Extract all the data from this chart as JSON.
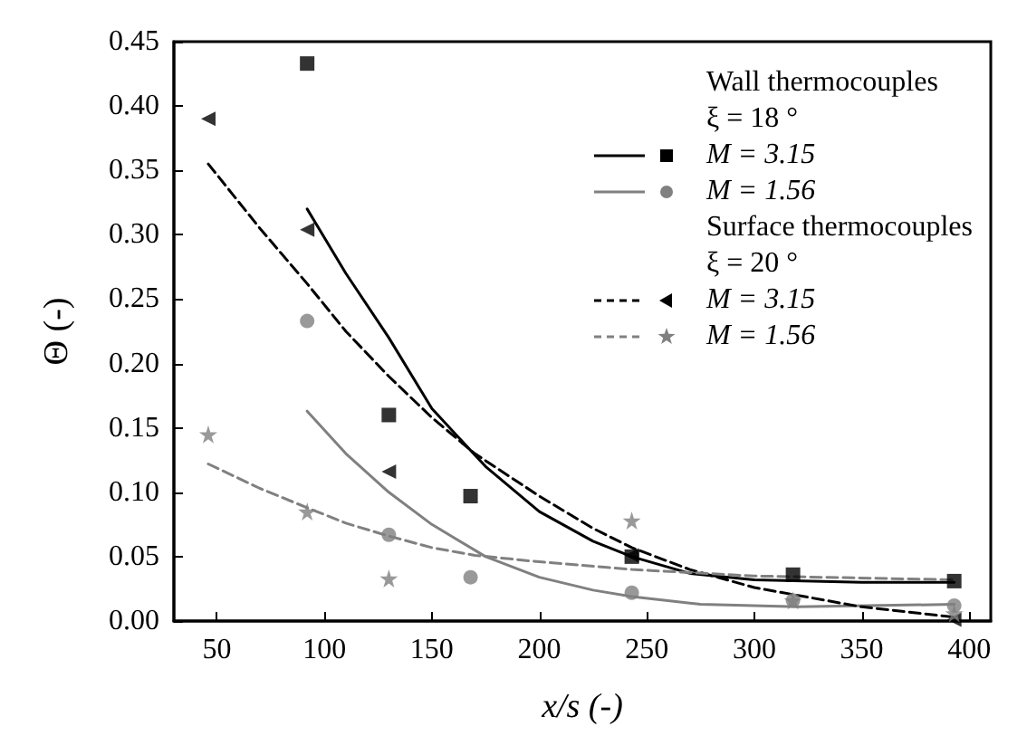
{
  "chart_data": {
    "type": "scatter",
    "xlabel": "x/s (-)",
    "ylabel": "Θ (-)",
    "xlim": [
      30,
      410
    ],
    "xticks": [
      50,
      100,
      150,
      200,
      250,
      300,
      350,
      400
    ],
    "ylim": [
      0,
      0.45
    ],
    "yticks": [
      {
        "value": 0,
        "label": "0.00"
      },
      0.05,
      {
        "value": 0.1,
        "label": "0.10"
      },
      0.15,
      {
        "value": 0.2,
        "label": "0.20"
      },
      0.25,
      {
        "value": 0.3,
        "label": "0.30"
      },
      0.35,
      {
        "value": 0.4,
        "label": "0.40"
      },
      0.45
    ],
    "grid": false,
    "legend": "top right",
    "annotations": [
      "Wall thermocouples",
      "ξ = 18 °",
      "Surface thermocouples",
      "ξ = 20 °"
    ],
    "series": [
      {
        "name": "M = 3.15",
        "color": "#000000",
        "marker": "square",
        "x": [
          92,
          130,
          168,
          243,
          318,
          393
        ],
        "values": [
          0.433,
          0.16,
          0.097,
          0.05,
          0.036,
          0.031
        ]
      },
      {
        "name": "M = 1.56",
        "color": "#808080",
        "marker": "circle",
        "x": [
          92,
          130,
          168,
          243,
          318,
          393
        ],
        "values": [
          0.233,
          0.067,
          0.034,
          0.022,
          0.016,
          0.012
        ]
      },
      {
        "name": "M = 3.15",
        "color": "#000000",
        "marker": "triangle",
        "x": [
          46,
          92,
          130,
          243,
          393
        ],
        "values": [
          0.39,
          0.304,
          0.116,
          0.051,
          0.001
        ]
      },
      {
        "name": "M = 1.56",
        "color": "#808080",
        "marker": "star",
        "x": [
          46,
          92,
          130,
          243,
          318,
          393
        ],
        "values": [
          0.145,
          0.085,
          0.033,
          0.078,
          0.016,
          0.006
        ]
      },
      {
        "type": "line",
        "color": "#000000",
        "line_style": "solid",
        "x": [
          92,
          110,
          130,
          150,
          175,
          200,
          225,
          243,
          270,
          300,
          350,
          393
        ],
        "values": [
          0.32,
          0.27,
          0.22,
          0.165,
          0.12,
          0.085,
          0.062,
          0.05,
          0.037,
          0.032,
          0.03,
          0.03
        ]
      },
      {
        "type": "line",
        "color": "#808080",
        "line_style": "solid",
        "x": [
          92,
          110,
          130,
          150,
          175,
          200,
          225,
          243,
          275,
          320,
          393
        ],
        "values": [
          0.163,
          0.13,
          0.1,
          0.075,
          0.05,
          0.034,
          0.024,
          0.019,
          0.013,
          0.011,
          0.013
        ]
      },
      {
        "type": "line",
        "color": "#000000",
        "line_style": "dashed",
        "x": [
          46,
          70,
          92,
          110,
          130,
          150,
          170,
          200,
          225,
          243,
          270,
          300,
          350,
          393
        ],
        "values": [
          0.355,
          0.305,
          0.262,
          0.225,
          0.19,
          0.158,
          0.13,
          0.097,
          0.072,
          0.057,
          0.04,
          0.026,
          0.011,
          0.003
        ]
      },
      {
        "type": "line",
        "color": "#808080",
        "line_style": "dashed",
        "x": [
          46,
          70,
          92,
          110,
          130,
          150,
          170,
          200,
          243,
          300,
          393
        ],
        "values": [
          0.122,
          0.103,
          0.088,
          0.076,
          0.066,
          0.057,
          0.051,
          0.046,
          0.04,
          0.035,
          0.032
        ]
      }
    ]
  }
}
